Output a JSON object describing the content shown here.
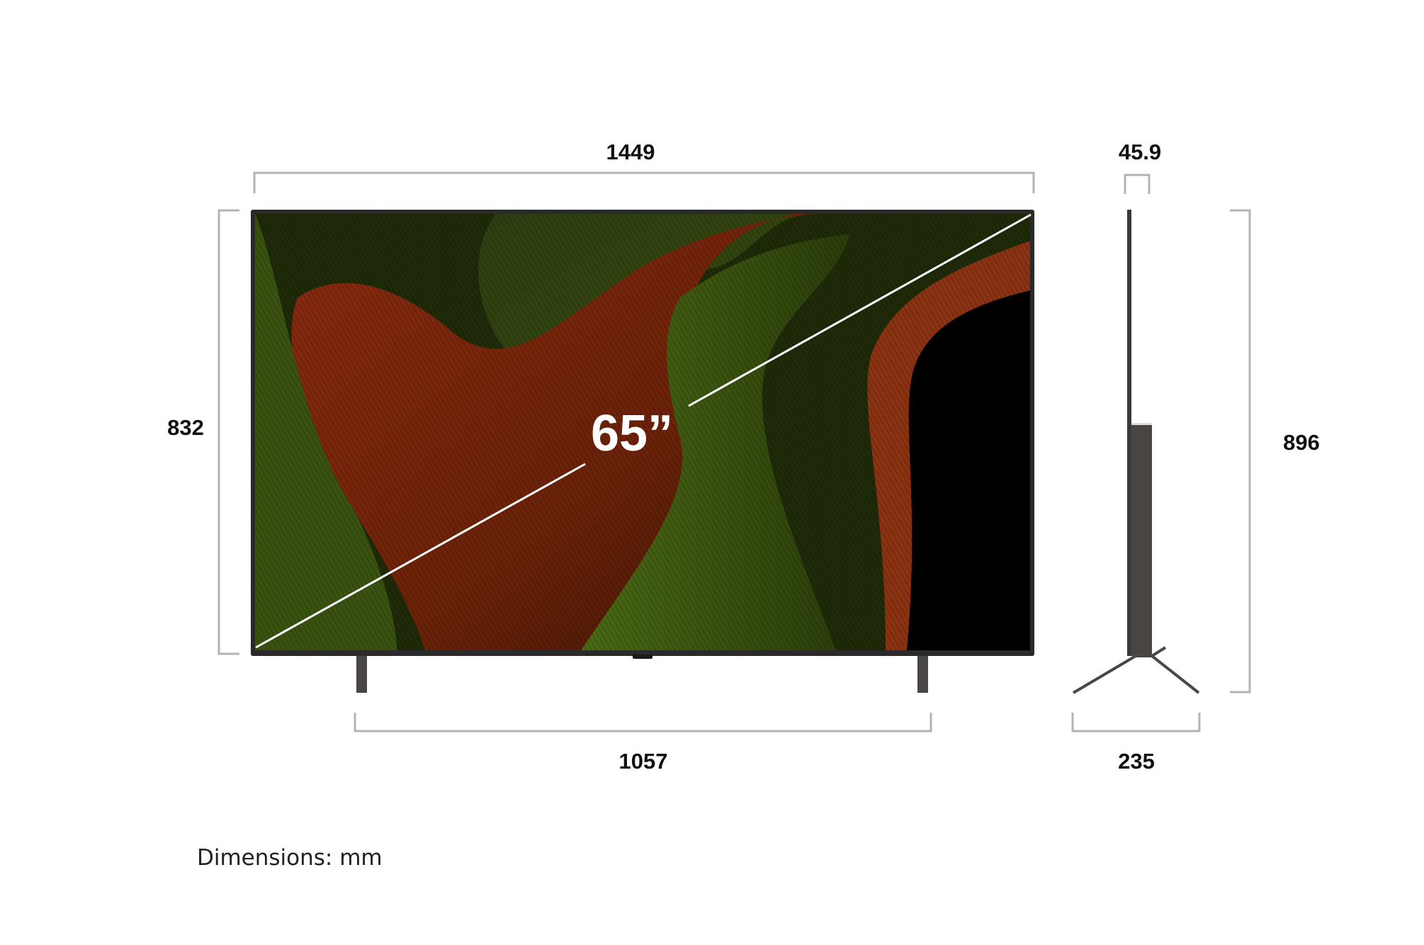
{
  "front_view": {
    "width_label": "1449",
    "height_label": "832",
    "stand_width_label": "1057",
    "screen_size_label": "65”"
  },
  "side_view": {
    "depth_label": "45.9",
    "total_height_label": "896",
    "stand_depth_label": "235"
  },
  "footer": {
    "units_note": "Dimensions: mm"
  },
  "colors": {
    "bracket": "#b3b3b3",
    "tv_frame": "#2a2a2a",
    "stand": "#4a4646"
  }
}
